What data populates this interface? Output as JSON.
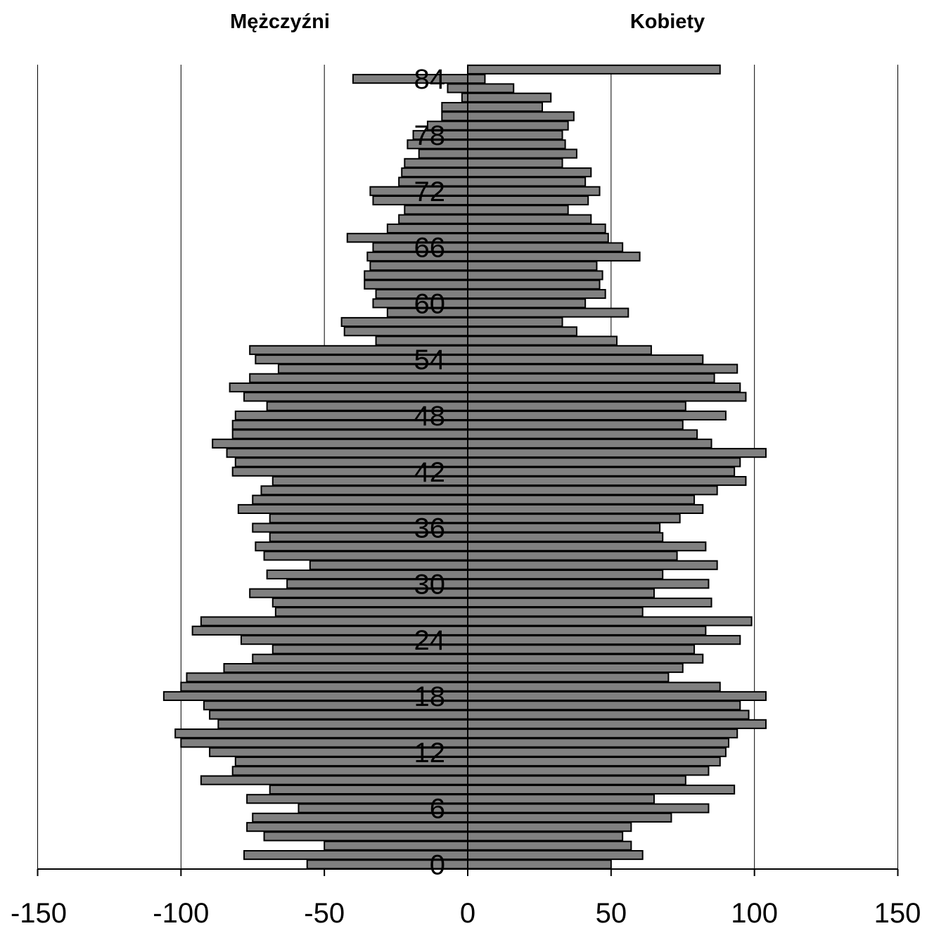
{
  "chart_data": {
    "type": "bar",
    "orientation": "horizontal",
    "left_label": "Mężczyźni",
    "right_label": "Kobiety",
    "xlim": [
      -150,
      150
    ],
    "x_ticks": [
      "-150",
      "-100",
      "-50",
      "0",
      "50",
      "100",
      "150"
    ],
    "age_ticks": [
      "0",
      "6",
      "12",
      "18",
      "24",
      "30",
      "36",
      "42",
      "48",
      "54",
      "60",
      "66",
      "72",
      "78",
      "84"
    ],
    "colors": {
      "bar_fill": "#808080",
      "bar_stroke": "#000000"
    },
    "ages": [
      0,
      1,
      2,
      3,
      4,
      5,
      6,
      7,
      8,
      9,
      10,
      11,
      12,
      13,
      14,
      15,
      16,
      17,
      18,
      19,
      20,
      21,
      22,
      23,
      24,
      25,
      26,
      27,
      28,
      29,
      30,
      31,
      32,
      33,
      34,
      35,
      36,
      37,
      38,
      39,
      40,
      41,
      42,
      43,
      44,
      45,
      46,
      47,
      48,
      49,
      50,
      51,
      52,
      53,
      54,
      55,
      56,
      57,
      58,
      59,
      60,
      61,
      62,
      63,
      64,
      65,
      66,
      67,
      68,
      69,
      70,
      71,
      72,
      73,
      74,
      75,
      76,
      77,
      78,
      79,
      80,
      81,
      82,
      83,
      84,
      85
    ],
    "series": [
      {
        "name": "Mężczyźni",
        "values": [
          -56,
          -78,
          -50,
          -71,
          -77,
          -75,
          -59,
          -77,
          -69,
          -93,
          -82,
          -81,
          -90,
          -100,
          -102,
          -87,
          -90,
          -92,
          -106,
          -100,
          -98,
          -85,
          -75,
          -68,
          -79,
          -96,
          -93,
          -67,
          -68,
          -76,
          -63,
          -70,
          -55,
          -71,
          -74,
          -69,
          -75,
          -69,
          -80,
          -75,
          -72,
          -68,
          -82,
          -81,
          -84,
          -89,
          -82,
          -82,
          -81,
          -70,
          -78,
          -83,
          -76,
          -66,
          -74,
          -76,
          -32,
          -43,
          -44,
          -28,
          -33,
          -32,
          -36,
          -36,
          -34,
          -35,
          -33,
          -42,
          -28,
          -24,
          -22,
          -33,
          -34,
          -24,
          -23,
          -22,
          -17,
          -21,
          -19,
          -14,
          -9,
          -9,
          -2,
          -7,
          -40,
          0
        ]
      },
      {
        "name": "Kobiety",
        "values": [
          50,
          61,
          57,
          54,
          57,
          71,
          84,
          65,
          93,
          76,
          84,
          88,
          90,
          91,
          94,
          104,
          98,
          95,
          104,
          88,
          70,
          75,
          82,
          79,
          95,
          83,
          99,
          61,
          85,
          65,
          84,
          68,
          87,
          73,
          83,
          68,
          67,
          74,
          82,
          79,
          87,
          97,
          93,
          95,
          104,
          85,
          80,
          75,
          90,
          76,
          97,
          95,
          86,
          94,
          82,
          64,
          52,
          38,
          33,
          56,
          41,
          48,
          46,
          47,
          45,
          60,
          54,
          49,
          48,
          43,
          35,
          42,
          46,
          41,
          43,
          33,
          38,
          34,
          33,
          35,
          37,
          26,
          29,
          16,
          6,
          88
        ]
      }
    ]
  }
}
